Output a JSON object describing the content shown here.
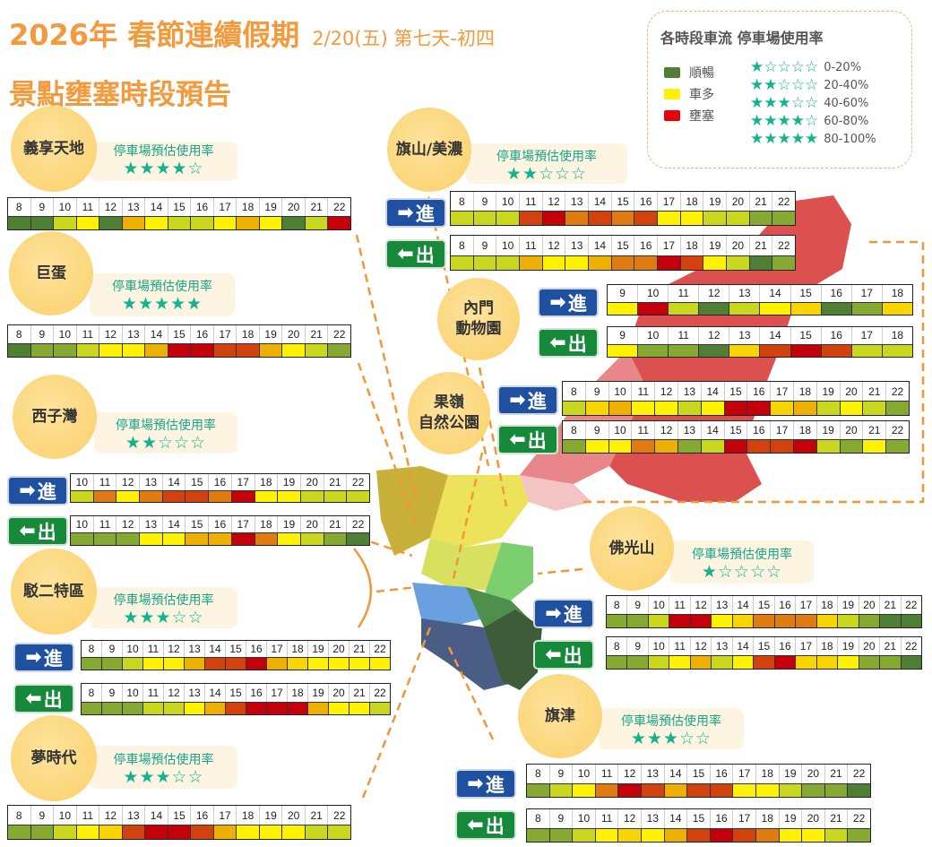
{
  "header": {
    "title": "2026年 春節連續假期",
    "subtitle": "2/20(五) 第七天-初四",
    "heading": "景點壅塞時段預告"
  },
  "legend": {
    "title": "各時段車流 停車場使用率",
    "levels": [
      {
        "label": "順暢",
        "color": "#4f7f34"
      },
      {
        "label": "車多",
        "color": "#fff200"
      },
      {
        "label": "壅塞",
        "color": "#e8000c"
      }
    ],
    "stars": [
      {
        "stars": "★☆☆☆☆",
        "range": "0-20%"
      },
      {
        "stars": "★★☆☆☆",
        "range": "20-40%"
      },
      {
        "stars": "★★★☆☆",
        "range": "40-60%"
      },
      {
        "stars": "★★★★☆",
        "range": "60-80%"
      },
      {
        "stars": "★★★★★",
        "range": "80-100%"
      }
    ]
  },
  "palette": {
    "G": "#4f7f34",
    "M": "#86a932",
    "L": "#c9d81e",
    "Y": "#fff200",
    "K": "#f8d400",
    "A": "#eeb000",
    "O": "#e07b12",
    "D": "#d2420f",
    "R": "#c4000b"
  },
  "parking_label": "停車場預估使用率",
  "sign_in": "進",
  "sign_out": "出",
  "spots": {
    "yixiang": {
      "name": "義享天地",
      "stars": "★★★★☆",
      "rating": 4,
      "start": 8,
      "flow": "GGLYGAYLLYAYGLR"
    },
    "judan": {
      "name": "巨蛋",
      "stars": "★★★★★",
      "rating": 5,
      "start": 8,
      "flow": "GMMLYYARRDDAYLM"
    },
    "xiziwan": {
      "name": "西子灣",
      "stars": "★★☆☆☆",
      "rating": 2,
      "start": 10,
      "in": "LOYODDORYYLLL",
      "out": "MMMYYAAROYLMG"
    },
    "bo2": {
      "name": "駁二特區",
      "stars": "★★★☆☆",
      "rating": 3,
      "start": 8,
      "in": "MMLYYADDRAKYYYY",
      "out": "MMMLLYADRRRAYYL"
    },
    "dream": {
      "name": "夢時代",
      "stars": "★★★☆☆",
      "rating": 3,
      "start": 8,
      "flow": "MMLYKDRRDAYYYLL"
    },
    "qishan": {
      "name": "旗山/美濃",
      "stars": "★★☆☆☆",
      "rating": 2,
      "start": 8,
      "in": "LLLDRODODYYLLMM",
      "out": "LLLAYYAOORDYLGM"
    },
    "neimen": {
      "name": "內門\n動物園",
      "start": 9,
      "in": "YRLGLYKGMK",
      "out": "YMMGKDRDLL"
    },
    "guoling": {
      "name": "果嶺\n自然公園",
      "start": 8,
      "in": "LKAYYLYRRKALYLM",
      "out": "MYYOAMLRDDRLMYM"
    },
    "foguang": {
      "name": "佛光山",
      "stars": "★☆☆☆☆",
      "rating": 1,
      "start": 8,
      "in": "MMLRRYKOOOKLMGG",
      "out": "MMLYALYDRKKYMMG"
    },
    "qijin": {
      "name": "旗津",
      "stars": "★★★☆☆",
      "rating": 3,
      "start": 8,
      "in": "MLYORDADDYYLMMG",
      "out": "MMLYKYADRDOYYLM"
    }
  }
}
